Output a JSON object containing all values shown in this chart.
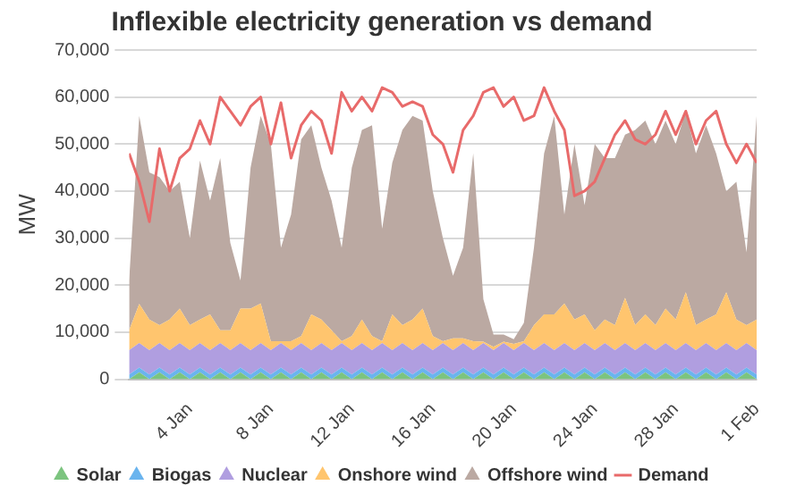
{
  "chart_data": {
    "type": "area",
    "title": "Inflexible electricity generation vs demand",
    "ylabel": "MW",
    "stacked": true,
    "grid": "y",
    "legend": "bottom",
    "x": [
      "--01-01T00:00",
      "--01-01T12:00",
      "--01-02T00:00",
      "--01-02T12:00",
      "--01-03T00:00",
      "--01-03T12:00",
      "--01-04T00:00",
      "--01-04T12:00",
      "--01-05T00:00",
      "--01-05T12:00",
      "--01-06T00:00",
      "--01-06T12:00",
      "--01-07T00:00",
      "--01-07T12:00",
      "--01-08T00:00",
      "--01-08T12:00",
      "--01-09T00:00",
      "--01-09T12:00",
      "--01-10T00:00",
      "--01-10T12:00",
      "--01-11T00:00",
      "--01-11T12:00",
      "--01-12T00:00",
      "--01-12T12:00",
      "--01-13T00:00",
      "--01-13T12:00",
      "--01-14T00:00",
      "--01-14T12:00",
      "--01-15T00:00",
      "--01-15T12:00",
      "--01-16T00:00",
      "--01-16T12:00",
      "--01-17T00:00",
      "--01-17T12:00",
      "--01-18T00:00",
      "--01-18T12:00",
      "--01-19T00:00",
      "--01-19T12:00",
      "--01-20T00:00",
      "--01-20T12:00",
      "--01-21T00:00",
      "--01-21T12:00",
      "--01-22T00:00",
      "--01-22T12:00",
      "--01-23T00:00",
      "--01-23T12:00",
      "--01-24T00:00",
      "--01-24T12:00",
      "--01-25T00:00",
      "--01-25T12:00",
      "--01-26T00:00",
      "--01-26T12:00",
      "--01-27T00:00",
      "--01-27T12:00",
      "--01-28T00:00",
      "--01-28T12:00",
      "--01-29T00:00",
      "--01-29T12:00",
      "--01-30T00:00",
      "--01-30T12:00",
      "--01-31T00:00",
      "--01-31T12:00",
      "--02-01T00:00"
    ],
    "xlim": [
      "--01-01T00:00",
      "--02-01T00:00"
    ],
    "xticks": [
      {
        "value": "--01-04",
        "label": "4 Jan"
      },
      {
        "value": "--01-08",
        "label": "8 Jan"
      },
      {
        "value": "--01-12",
        "label": "12 Jan"
      },
      {
        "value": "--01-16",
        "label": "16 Jan"
      },
      {
        "value": "--01-20",
        "label": "20 Jan"
      },
      {
        "value": "--01-24",
        "label": "24 Jan"
      },
      {
        "value": "--01-28",
        "label": "28 Jan"
      },
      {
        "value": "--02-01",
        "label": "1 Feb"
      }
    ],
    "ylim": [
      0,
      70000
    ],
    "yticks": [
      {
        "value": 0,
        "label": "0"
      },
      {
        "value": 10000,
        "label": "10,000"
      },
      {
        "value": 20000,
        "label": "20,000"
      },
      {
        "value": 30000,
        "label": "30,000"
      },
      {
        "value": 40000,
        "label": "40,000"
      },
      {
        "value": 50000,
        "label": "50,000"
      },
      {
        "value": 60000,
        "label": "60,000"
      },
      {
        "value": 70000,
        "label": "70,000"
      }
    ],
    "series": [
      {
        "name": "Solar",
        "color": "#7cc47f",
        "values": [
          0,
          1500,
          0,
          1500,
          0,
          1500,
          0,
          1500,
          0,
          1500,
          0,
          1500,
          0,
          1500,
          0,
          1500,
          0,
          1500,
          0,
          1500,
          0,
          1500,
          0,
          1500,
          0,
          1500,
          0,
          1500,
          0,
          1500,
          0,
          1500,
          0,
          1500,
          0,
          1500,
          0,
          1500,
          0,
          1500,
          0,
          1500,
          0,
          1500,
          0,
          1500,
          0,
          1500,
          0,
          1500,
          0,
          1500,
          0,
          1500,
          0,
          1500,
          0,
          1500,
          0,
          1500,
          0,
          1500,
          0
        ]
      },
      {
        "name": "Biogas",
        "color": "#6ab4ee",
        "values": [
          1000,
          1000,
          1000,
          1000,
          1000,
          1000,
          1000,
          1000,
          1000,
          1000,
          1000,
          1000,
          1000,
          1000,
          1000,
          1000,
          1000,
          1000,
          1000,
          1000,
          1000,
          1000,
          1000,
          1000,
          1000,
          1000,
          1000,
          1000,
          1000,
          1000,
          1000,
          1000,
          1000,
          1000,
          1000,
          1000,
          1000,
          1000,
          1000,
          1000,
          1000,
          1000,
          1000,
          1000,
          1000,
          1000,
          1000,
          1000,
          1000,
          1000,
          1000,
          1000,
          1000,
          1000,
          1000,
          1000,
          1000,
          1000,
          1000,
          1000,
          1000,
          1000,
          1000
        ]
      },
      {
        "name": "Nuclear",
        "color": "#b09ee0",
        "values": [
          5200,
          5200,
          5200,
          5200,
          5200,
          5200,
          5200,
          5200,
          5200,
          5200,
          5200,
          5200,
          5200,
          5200,
          5200,
          5200,
          5200,
          5200,
          5200,
          5200,
          5200,
          5200,
          5200,
          5200,
          5200,
          5200,
          5200,
          5200,
          5200,
          5200,
          5200,
          5200,
          5200,
          5200,
          5200,
          5200,
          5200,
          5200,
          5200,
          5200,
          5200,
          5200,
          5200,
          5200,
          5200,
          5200,
          5200,
          5200,
          5200,
          5200,
          5200,
          5200,
          5200,
          5200,
          5200,
          5200,
          5200,
          5200,
          5200,
          5200,
          5200,
          5200,
          5200
        ]
      },
      {
        "name": "Onshore wind",
        "color": "#ffc56e",
        "values": [
          4200,
          8300,
          6500,
          3800,
          6500,
          7300,
          5300,
          5000,
          7600,
          2700,
          4200,
          7300,
          8800,
          8400,
          1900,
          400,
          1900,
          1500,
          7600,
          5000,
          4200,
          400,
          3000,
          5000,
          3000,
          400,
          7600,
          3800,
          6500,
          7300,
          3000,
          400,
          2500,
          1000,
          1900,
          300,
          700,
          300,
          1300,
          400,
          5300,
          6100,
          7600,
          8400,
          6500,
          6100,
          4200,
          5000,
          5300,
          9600,
          5300,
          6100,
          5300,
          7300,
          6500,
          10800,
          5300,
          5000,
          7600,
          10800,
          6500,
          3800,
          6500
        ]
      },
      {
        "name": "Offshore wind",
        "color": "#bba9a2",
        "values": [
          10600,
          40000,
          31300,
          31500,
          27300,
          27000,
          18500,
          33800,
          24200,
          36600,
          18600,
          6000,
          30000,
          39900,
          41900,
          19900,
          26900,
          41800,
          40200,
          32300,
          27600,
          19900,
          35800,
          40300,
          44800,
          23900,
          32200,
          41500,
          43300,
          40000,
          30800,
          21900,
          13300,
          19300,
          39900,
          9000,
          2600,
          1500,
          1000,
          3900,
          16500,
          34200,
          42200,
          18900,
          37300,
          23200,
          39600,
          34300,
          35500,
          34700,
          41500,
          41200,
          38500,
          40000,
          37300,
          38500,
          36500,
          41300,
          34200,
          21500,
          29300,
          15500,
          43300
        ]
      },
      {
        "name": "Demand",
        "type": "line",
        "color": "#e86a6a",
        "values": [
          48000,
          42000,
          33500,
          49000,
          40000,
          47000,
          49000,
          55000,
          50000,
          60000,
          57000,
          54000,
          58000,
          60000,
          50000,
          58800,
          47000,
          54000,
          57000,
          55000,
          48000,
          61000,
          57000,
          60000,
          57000,
          62000,
          61000,
          58000,
          59000,
          58000,
          52000,
          50000,
          44000,
          53000,
          56000,
          61000,
          62000,
          58000,
          60000,
          55000,
          56000,
          62000,
          57000,
          53000,
          39000,
          40000,
          42000,
          47000,
          52000,
          55000,
          51000,
          50000,
          52000,
          57000,
          52000,
          57000,
          50000,
          55000,
          57000,
          50000,
          46000,
          50000,
          46000
        ]
      }
    ]
  }
}
